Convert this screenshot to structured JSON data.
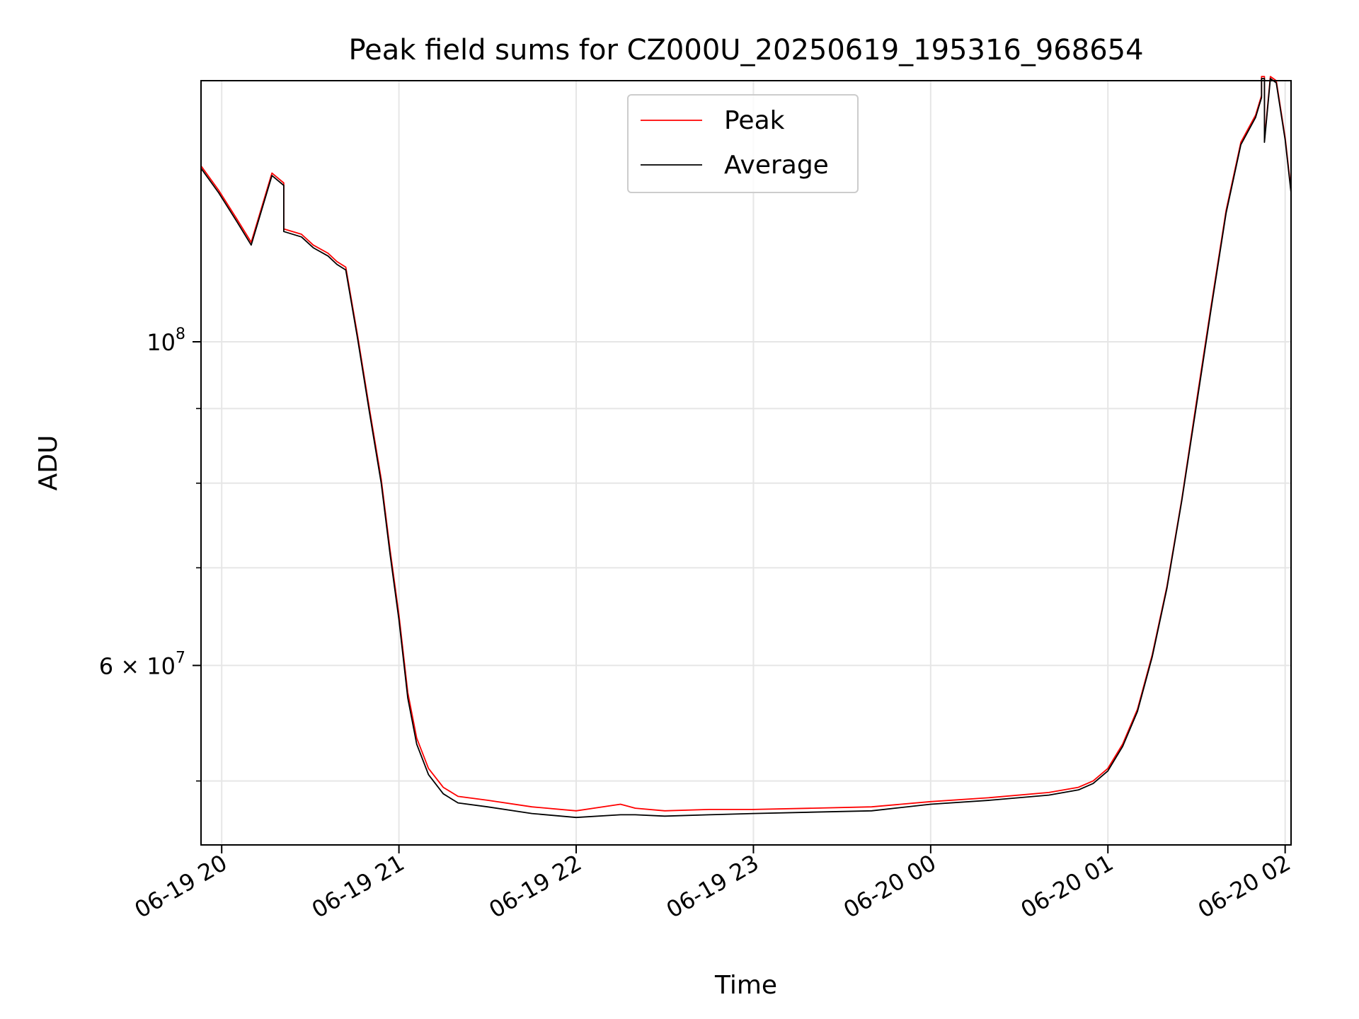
{
  "chart_data": {
    "type": "line",
    "title": "Peak field sums for CZ000U_20250619_195316_968654",
    "xlabel": "Time",
    "ylabel": "ADU",
    "y_scale": "log",
    "ylim": [
      45200000,
      151000000
    ],
    "xlim": [
      "2025-06-19 19:53",
      "2025-06-20 02:02"
    ],
    "x_ticks": [
      {
        "t": "2025-06-19 20:00",
        "label": "06-19 20"
      },
      {
        "t": "2025-06-19 21:00",
        "label": "06-19 21"
      },
      {
        "t": "2025-06-19 22:00",
        "label": "06-19 22"
      },
      {
        "t": "2025-06-19 23:00",
        "label": "06-19 23"
      },
      {
        "t": "2025-06-20 00:00",
        "label": "06-20 00"
      },
      {
        "t": "2025-06-20 01:00",
        "label": "06-20 01"
      },
      {
        "t": "2025-06-20 02:00",
        "label": "06-20 02"
      }
    ],
    "y_major_ticks": [
      {
        "value": 100000000,
        "label": "10",
        "exp": "8"
      },
      {
        "value": 60000000,
        "label": "6 × 10",
        "exp": "7"
      }
    ],
    "y_minor_ticks": [
      50000000,
      70000000,
      80000000,
      90000000
    ],
    "grid": true,
    "legend_position": "top-center",
    "series": [
      {
        "name": "Peak",
        "color": "#ff0000",
        "x": [
          "2025-06-19 19:53",
          "2025-06-19 19:59",
          "2025-06-19 20:05",
          "2025-06-19 20:10",
          "2025-06-19 20:17",
          "2025-06-19 20:21",
          "2025-06-19 20:21",
          "2025-06-19 20:27",
          "2025-06-19 20:31",
          "2025-06-19 20:36",
          "2025-06-19 20:39",
          "2025-06-19 20:42",
          "2025-06-19 20:46",
          "2025-06-19 20:50",
          "2025-06-19 20:54",
          "2025-06-19 20:57",
          "2025-06-19 21:00",
          "2025-06-19 21:03",
          "2025-06-19 21:06",
          "2025-06-19 21:10",
          "2025-06-19 21:15",
          "2025-06-19 21:20",
          "2025-06-19 21:30",
          "2025-06-19 21:45",
          "2025-06-19 22:00",
          "2025-06-19 22:15",
          "2025-06-19 22:20",
          "2025-06-19 22:30",
          "2025-06-19 22:45",
          "2025-06-19 23:00",
          "2025-06-19 23:20",
          "2025-06-19 23:40",
          "2025-06-20 00:00",
          "2025-06-20 00:20",
          "2025-06-20 00:40",
          "2025-06-20 00:50",
          "2025-06-20 00:55",
          "2025-06-20 01:00",
          "2025-06-20 01:05",
          "2025-06-20 01:10",
          "2025-06-20 01:15",
          "2025-06-20 01:20",
          "2025-06-20 01:25",
          "2025-06-20 01:30",
          "2025-06-20 01:35",
          "2025-06-20 01:40",
          "2025-06-20 01:45",
          "2025-06-20 01:50",
          "2025-06-20 01:52",
          "2025-06-20 01:52",
          "2025-06-20 01:53",
          "2025-06-20 01:53",
          "2025-06-20 01:55",
          "2025-06-20 01:57",
          "2025-06-20 02:00",
          "2025-06-20 02:02"
        ],
        "y": [
          132000000,
          127000000,
          121500000,
          117000000,
          130500000,
          128500000,
          119500000,
          118500000,
          116500000,
          115000000,
          113500000,
          112500000,
          101000000,
          90000000,
          80500000,
          72000000,
          65000000,
          57500000,
          53500000,
          51000000,
          49500000,
          48800000,
          48500000,
          48000000,
          47700000,
          48200000,
          47900000,
          47700000,
          47800000,
          47800000,
          47900000,
          48000000,
          48400000,
          48700000,
          49100000,
          49500000,
          50000000,
          51000000,
          53000000,
          56000000,
          61000000,
          68000000,
          78000000,
          91000000,
          106000000,
          123000000,
          137000000,
          143000000,
          147500000,
          152000000,
          152000000,
          137500000,
          152000000,
          151000000,
          138000000,
          127000000
        ]
      },
      {
        "name": "Average",
        "color": "#000000",
        "x": [
          "2025-06-19 19:53",
          "2025-06-19 19:59",
          "2025-06-19 20:05",
          "2025-06-19 20:10",
          "2025-06-19 20:17",
          "2025-06-19 20:21",
          "2025-06-19 20:21",
          "2025-06-19 20:27",
          "2025-06-19 20:31",
          "2025-06-19 20:36",
          "2025-06-19 20:39",
          "2025-06-19 20:42",
          "2025-06-19 20:46",
          "2025-06-19 20:50",
          "2025-06-19 20:54",
          "2025-06-19 20:57",
          "2025-06-19 21:00",
          "2025-06-19 21:03",
          "2025-06-19 21:06",
          "2025-06-19 21:10",
          "2025-06-19 21:15",
          "2025-06-19 21:20",
          "2025-06-19 21:30",
          "2025-06-19 21:45",
          "2025-06-19 22:00",
          "2025-06-19 22:15",
          "2025-06-19 22:20",
          "2025-06-19 22:30",
          "2025-06-19 22:45",
          "2025-06-19 23:00",
          "2025-06-19 23:20",
          "2025-06-19 23:40",
          "2025-06-20 00:00",
          "2025-06-20 00:20",
          "2025-06-20 00:40",
          "2025-06-20 00:50",
          "2025-06-20 00:55",
          "2025-06-20 01:00",
          "2025-06-20 01:05",
          "2025-06-20 01:10",
          "2025-06-20 01:15",
          "2025-06-20 01:20",
          "2025-06-20 01:25",
          "2025-06-20 01:30",
          "2025-06-20 01:35",
          "2025-06-20 01:40",
          "2025-06-20 01:45",
          "2025-06-20 01:50",
          "2025-06-20 01:52",
          "2025-06-20 01:52",
          "2025-06-20 01:53",
          "2025-06-20 01:53",
          "2025-06-20 01:55",
          "2025-06-20 01:57",
          "2025-06-20 02:00",
          "2025-06-20 02:02"
        ],
        "y": [
          131500000,
          126500000,
          121000000,
          116500000,
          130000000,
          128000000,
          119000000,
          118000000,
          116000000,
          114500000,
          113000000,
          112000000,
          100500000,
          89500000,
          80000000,
          71500000,
          64500000,
          57000000,
          53000000,
          50500000,
          49000000,
          48300000,
          48000000,
          47500000,
          47200000,
          47400000,
          47400000,
          47300000,
          47400000,
          47500000,
          47600000,
          47700000,
          48200000,
          48500000,
          48900000,
          49300000,
          49800000,
          50800000,
          52800000,
          55800000,
          60800000,
          67800000,
          77800000,
          90500000,
          105500000,
          122500000,
          136500000,
          142500000,
          147000000,
          151500000,
          151500000,
          137000000,
          151500000,
          150500000,
          137500000,
          126500000
        ]
      }
    ]
  }
}
